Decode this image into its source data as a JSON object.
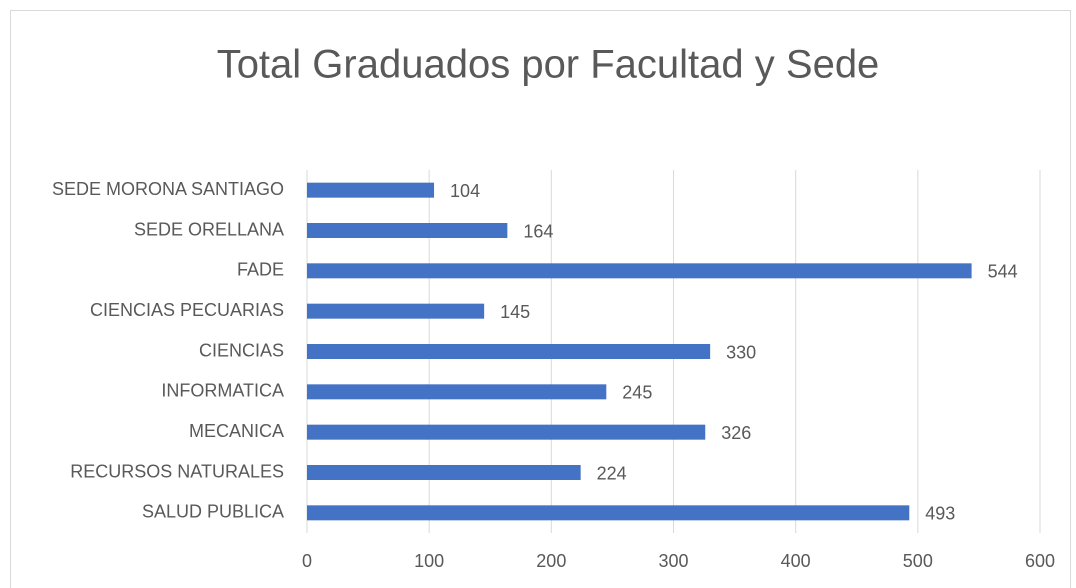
{
  "chart_data": {
    "type": "bar",
    "orientation": "horizontal",
    "title": "Total Graduados por Facultad y Sede",
    "categories": [
      "SEDE MORONA SANTIAGO",
      "SEDE ORELLANA",
      "FADE",
      "CIENCIAS PECUARIAS",
      "CIENCIAS",
      "INFORMATICA",
      "MECANICA",
      "RECURSOS NATURALES",
      "SALUD PUBLICA"
    ],
    "values": [
      104,
      164,
      544,
      145,
      330,
      245,
      326,
      224,
      493
    ],
    "color": "#4472c4",
    "xlim": [
      0,
      600
    ],
    "xticks": [
      0,
      100,
      200,
      300,
      400,
      500,
      600
    ],
    "grid": true
  }
}
